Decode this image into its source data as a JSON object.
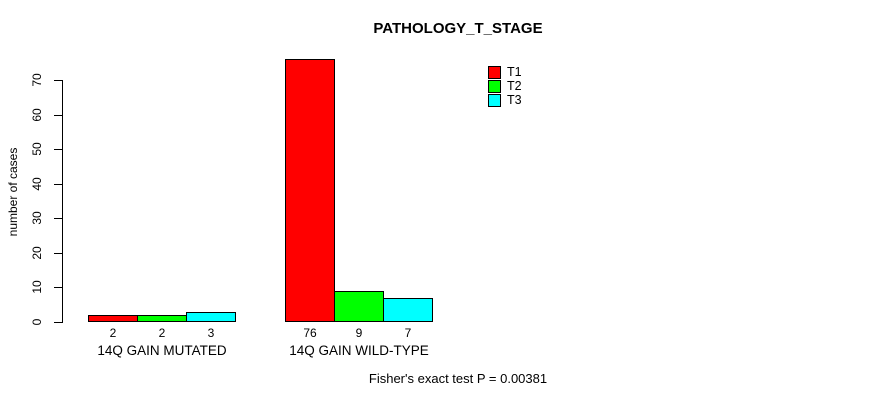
{
  "chart_data": {
    "type": "bar",
    "title": "PATHOLOGY_T_STAGE",
    "xlabel": "",
    "ylabel": "number of cases",
    "ylim": [
      0,
      70
    ],
    "yticks": [
      0,
      10,
      20,
      30,
      40,
      50,
      60,
      70
    ],
    "categories": [
      "14Q GAIN MUTATED",
      "14Q GAIN WILD-TYPE"
    ],
    "series": [
      {
        "name": "T1",
        "color": "#ff0000",
        "values": [
          2,
          76
        ]
      },
      {
        "name": "T2",
        "color": "#00ff00",
        "values": [
          2,
          9
        ]
      },
      {
        "name": "T3",
        "color": "#00ffff",
        "values": [
          3,
          7
        ]
      }
    ],
    "legend": {
      "position": "top-right",
      "entries": [
        "T1",
        "T2",
        "T3"
      ]
    },
    "grid": false,
    "bar_border_color": "#000000",
    "annotation": "Fisher's exact test P = 0.00381"
  }
}
